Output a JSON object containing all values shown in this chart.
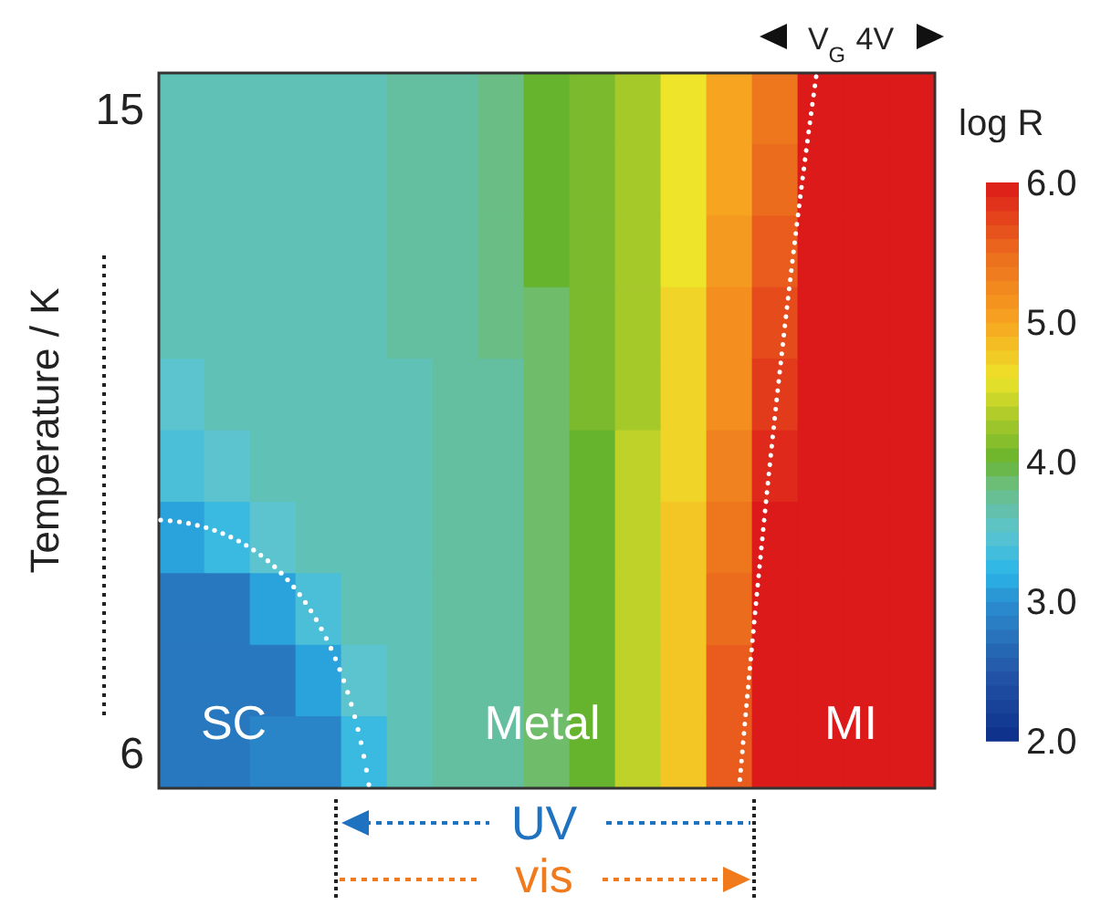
{
  "chart_data": {
    "type": "heatmap",
    "ylabel": "Temperature / K",
    "clabel": "log R",
    "categories": [
      null,
      null,
      null,
      null,
      null,
      null,
      null,
      null,
      null,
      null,
      null,
      null,
      null,
      null,
      null,
      null,
      null
    ],
    "y_categories": [
      "15",
      null,
      null,
      null,
      null,
      null,
      null,
      null,
      null,
      "6"
    ],
    "cells": [
      [
        3.6,
        3.6,
        3.6,
        3.6,
        3.6,
        3.7,
        3.7,
        3.8,
        4.0,
        4.1,
        4.3,
        4.6,
        5.0,
        5.4,
        6.0,
        6.0,
        6.0
      ],
      [
        3.6,
        3.6,
        3.6,
        3.6,
        3.6,
        3.7,
        3.7,
        3.8,
        4.0,
        4.1,
        4.3,
        4.6,
        5.0,
        5.5,
        6.0,
        6.0,
        6.0
      ],
      [
        3.6,
        3.6,
        3.6,
        3.6,
        3.6,
        3.7,
        3.7,
        3.8,
        4.0,
        4.1,
        4.3,
        4.6,
        5.1,
        5.6,
        6.0,
        6.0,
        6.0
      ],
      [
        3.6,
        3.6,
        3.6,
        3.6,
        3.6,
        3.7,
        3.7,
        3.8,
        3.9,
        4.1,
        4.3,
        4.7,
        5.2,
        5.7,
        6.0,
        6.0,
        6.0
      ],
      [
        3.5,
        3.6,
        3.6,
        3.6,
        3.6,
        3.6,
        3.7,
        3.7,
        3.9,
        4.1,
        4.3,
        4.7,
        5.2,
        5.8,
        6.0,
        6.0,
        6.0
      ],
      [
        3.4,
        3.5,
        3.6,
        3.6,
        3.6,
        3.6,
        3.7,
        3.7,
        3.9,
        4.0,
        4.4,
        4.7,
        5.3,
        5.9,
        6.0,
        6.0,
        6.0
      ],
      [
        3.1,
        3.3,
        3.5,
        3.6,
        3.6,
        3.6,
        3.7,
        3.7,
        3.9,
        4.0,
        4.4,
        4.8,
        5.4,
        6.0,
        6.0,
        6.0,
        6.0
      ],
      [
        2.8,
        2.8,
        3.1,
        3.4,
        3.6,
        3.6,
        3.7,
        3.7,
        3.9,
        4.0,
        4.4,
        4.8,
        5.5,
        6.0,
        6.0,
        6.0,
        6.0
      ],
      [
        2.8,
        2.8,
        2.8,
        3.1,
        3.5,
        3.6,
        3.7,
        3.7,
        3.9,
        4.0,
        4.4,
        4.8,
        5.6,
        6.0,
        6.0,
        6.0,
        6.0
      ],
      [
        2.8,
        2.8,
        2.9,
        2.9,
        3.3,
        3.6,
        3.7,
        3.7,
        3.9,
        4.0,
        4.4,
        4.8,
        5.6,
        6.0,
        6.0,
        6.0,
        6.0
      ]
    ],
    "clim": [
      2.0,
      6.0
    ],
    "cticks": [
      {
        "value": 2,
        "label": "2.0"
      },
      {
        "value": 3,
        "label": "3.0"
      },
      {
        "value": 4,
        "label": "4.0"
      },
      {
        "value": 5,
        "label": "5.0"
      },
      {
        "value": 6,
        "label": "6.0"
      }
    ],
    "annotations": [
      "SC",
      "Metal",
      "MI",
      "V$_{G}$ 4V",
      "UV",
      "vis"
    ]
  }
}
